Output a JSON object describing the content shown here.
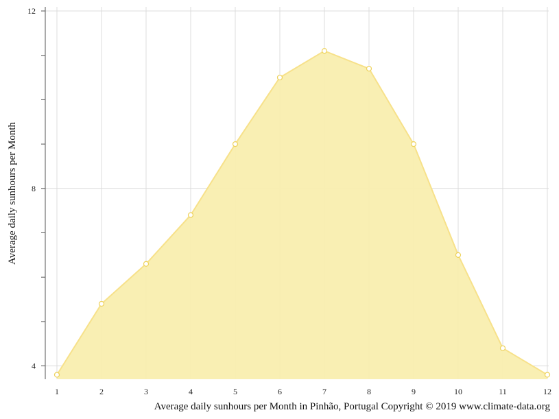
{
  "chart_data": {
    "type": "area",
    "x": [
      1,
      2,
      3,
      4,
      5,
      6,
      7,
      8,
      9,
      10,
      11,
      12
    ],
    "series": [
      {
        "values": [
          3.8,
          5.4,
          6.3,
          7.4,
          9.0,
          10.5,
          11.1,
          10.7,
          9.0,
          6.5,
          4.4,
          3.8
        ]
      }
    ],
    "xlim": [
      1,
      12
    ],
    "ylim": [
      3.7,
      12
    ],
    "y_ticks_labeled": [
      4,
      8,
      12
    ],
    "ylabel": "Average daily sunhours per Month",
    "caption": "Average daily sunhours per Month in Pinhão, Portugal Copyright © 2019 www.climate-data.org",
    "grid": true,
    "fill_color": "#f9eeaf",
    "line_color": "#f7e18a",
    "point_fill": "#ffffff",
    "point_stroke": "#eed25a",
    "grid_color": "#dcdcdc",
    "axis_color": "#555555"
  }
}
